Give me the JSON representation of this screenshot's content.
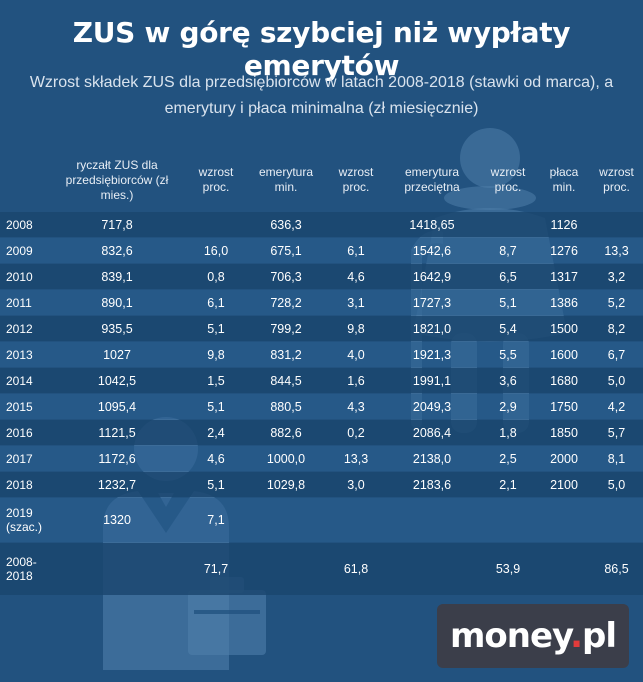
{
  "title": "ZUS w górę szybciej niż wypłaty emerytów",
  "subtitle_line1": "Wzrost składek ZUS dla przedsiębiorców w latach 2008-2018 (stawki od marca), a",
  "subtitle_line2": "emerytury i płaca minimalna (zł miesięcznie)",
  "icons": [
    "elderly-woman-icon",
    "businessman-icon"
  ],
  "colors": {
    "background": "#22527f",
    "logo_bg": "#3b3e4a",
    "logo_dot": "#e23b3b"
  },
  "logo": {
    "text_main": "money",
    "text_dot": ".",
    "text_tld": "pl"
  },
  "chart_data": {
    "type": "table",
    "columns": [
      "",
      "ryczałt ZUS dla przedsiębiorców (zł mies.)",
      "wzrost proc.",
      "emerytura min.",
      "wzrost proc.",
      "emerytura przeciętna",
      "wzrost proc.",
      "płaca min.",
      "wzrost proc."
    ],
    "rows": [
      [
        "2008",
        "717,8",
        "",
        "636,3",
        "",
        "1418,65",
        "",
        "1126",
        ""
      ],
      [
        "2009",
        "832,6",
        "16,0",
        "675,1",
        "6,1",
        "1542,6",
        "8,7",
        "1276",
        "13,3"
      ],
      [
        "2010",
        "839,1",
        "0,8",
        "706,3",
        "4,6",
        "1642,9",
        "6,5",
        "1317",
        "3,2"
      ],
      [
        "2011",
        "890,1",
        "6,1",
        "728,2",
        "3,1",
        "1727,3",
        "5,1",
        "1386",
        "5,2"
      ],
      [
        "2012",
        "935,5",
        "5,1",
        "799,2",
        "9,8",
        "1821,0",
        "5,4",
        "1500",
        "8,2"
      ],
      [
        "2013",
        "1027",
        "9,8",
        "831,2",
        "4,0",
        "1921,3",
        "5,5",
        "1600",
        "6,7"
      ],
      [
        "2014",
        "1042,5",
        "1,5",
        "844,5",
        "1,6",
        "1991,1",
        "3,6",
        "1680",
        "5,0"
      ],
      [
        "2015",
        "1095,4",
        "5,1",
        "880,5",
        "4,3",
        "2049,3",
        "2,9",
        "1750",
        "4,2"
      ],
      [
        "2016",
        "1121,5",
        "2,4",
        "882,6",
        "0,2",
        "2086,4",
        "1,8",
        "1850",
        "5,7"
      ],
      [
        "2017",
        "1172,6",
        "4,6",
        "1000,0",
        "13,3",
        "2138,0",
        "2,5",
        "2000",
        "8,1"
      ],
      [
        "2018",
        "1232,7",
        "5,1",
        "1029,8",
        "3,0",
        "2183,6",
        "2,1",
        "2100",
        "5,0"
      ],
      [
        "2019 (szac.)",
        "1320",
        "7,1",
        "",
        "",
        "",
        "",
        "",
        ""
      ],
      [
        "2008-2018",
        "",
        "71,7",
        "",
        "61,8",
        "",
        "53,9",
        "",
        "86,5"
      ]
    ]
  }
}
